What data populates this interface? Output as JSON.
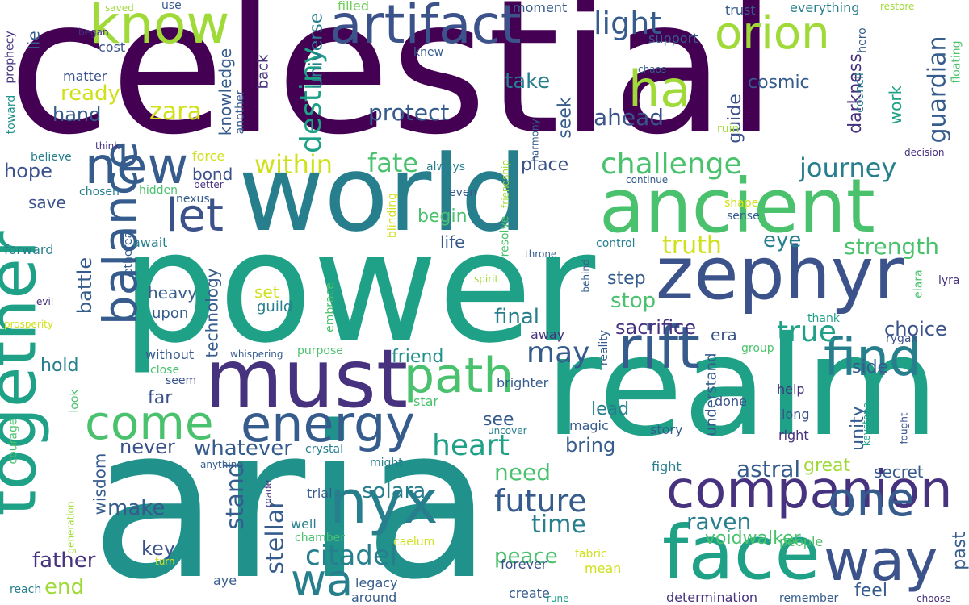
{
  "words": {
    "celestial": "celestial",
    "aria": "aria",
    "power": "power",
    "realm": "realm",
    "world": "world",
    "must": "must",
    "ancient": "ancient",
    "zephyr": "zephyr",
    "companion": "companion",
    "face": "face",
    "together": "together",
    "nyx": "nyx",
    "energy": "energy",
    "artifact": "artifact",
    "know": "know",
    "orion": "orion",
    "rift": "rift",
    "way": "way",
    "find": "find",
    "path": "path",
    "come": "come",
    "balance": "balance",
    "ha": "ha",
    "new": "new",
    "one": "one",
    "let": "let",
    "wa": "wa",
    "heart": "heart",
    "citadel": "citadel",
    "future": "future",
    "challenge": "challenge",
    "journey": "journey",
    "truth": "truth",
    "true": "true",
    "strength": "strength",
    "destiny": "destiny",
    "light": "light",
    "within": "within",
    "fate": "fate",
    "guardian": "guardian",
    "sacrifice": "sacrifice",
    "choice": "choice",
    "astral": "astral",
    "stellar": "stellar",
    "stand": "stand",
    "whatever": "whatever",
    "solara": "solara",
    "make": "make",
    "father": "father",
    "raven": "raven",
    "voidwalker": "voidwalker",
    "peace": "peace",
    "time": "time",
    "bring": "bring",
    "need": "need",
    "final": "final",
    "may": "may",
    "zara": "zara",
    "ready": "ready",
    "protect": "protect",
    "take": "take",
    "ahead": "ahead",
    "cosmic": "cosmic",
    "universe": "universe",
    "knowledge": "knowledge",
    "hope": "hope",
    "hand": "hand",
    "seek": "seek",
    "guide": "guide",
    "darkness": "darkness",
    "work": "work",
    "battle": "battle",
    "technology": "technology",
    "stop": "stop",
    "eye": "eye",
    "great": "great",
    "end": "end",
    "key": "key",
    "never": "never",
    "see": "see",
    "lead": "lead",
    "unity": "unity",
    "secret": "secret",
    "past": "past",
    "understand": "understand",
    "side": "side",
    "save": "save",
    "bond": "bond",
    "begin": "begin",
    "life": "life",
    "place": "place",
    "wisdom": "wisdom",
    "far": "far",
    "hold": "hold",
    "friend": "friend",
    "step": "step",
    "era": "era",
    "set": "set",
    "heavy": "heavy",
    "upon": "upon",
    "guild": "guild",
    "feel": "feel",
    "lie": "lie",
    "back": "back",
    "matter": "matter",
    "cost": "cost",
    "prophecy": "prophecy",
    "toward": "toward",
    "believe": "believe",
    "chosen": "chosen",
    "forward": "forward",
    "evil": "evil",
    "prosperity": "prosperity",
    "courage": "courage",
    "force": "force",
    "hidden": "hidden",
    "nexus": "nexus",
    "await": "await",
    "ethereal": "ethereal",
    "without": "without",
    "close": "close",
    "seem": "seem",
    "look": "look",
    "embrace": "embrace",
    "purpose": "purpose",
    "whispering": "whispering",
    "crystal": "crystal",
    "might": "might",
    "trial": "trial",
    "made": "made",
    "well": "well",
    "chamber": "chamber",
    "caelum": "caelum",
    "legacy": "legacy",
    "around": "around",
    "aye": "aye",
    "forever": "forever",
    "create": "create",
    "mean": "mean",
    "fabric": "fabric",
    "magic": "magic",
    "story": "story",
    "brighter": "brighter",
    "star": "star",
    "uncover": "uncover",
    "done": "done",
    "help": "help",
    "long": "long",
    "right": "right",
    "fight": "fight",
    "people": "people",
    "remember": "remember",
    "determination": "determination",
    "rune": "rune",
    "choose": "choose",
    "reach": "reach",
    "generation": "generation",
    "turn": "turn",
    "anything": "anything",
    "saved": "saved",
    "use": "use",
    "began": "began",
    "filled": "filled",
    "moment": "moment",
    "knew": "knew",
    "support": "support",
    "trust": "trust",
    "everything": "everything",
    "restore": "restore",
    "hero": "hero",
    "council": "council",
    "chaos": "chaos",
    "harmony": "harmony",
    "ruin": "ruin",
    "floating": "floating",
    "decision": "decision",
    "think": "think",
    "always": "always",
    "even": "even",
    "another": "another",
    "friendship": "friendship",
    "continue": "continue",
    "better": "better",
    "resolve": "resolve",
    "blinding": "blinding",
    "control": "control",
    "throne": "throne",
    "shape": "shape",
    "sense": "sense",
    "behind": "behind",
    "spirit": "spirit",
    "reality": "reality",
    "away": "away",
    "thank": "thank",
    "group": "group",
    "rygax": "rygax",
    "elara": "elara",
    "lyra": "lyra",
    "keystone": "keystone",
    "fought": "fought"
  },
  "colors": {
    "deep_purple": "#440154",
    "purple": "#46327e",
    "indigo": "#3b528b",
    "blue": "#365c8d",
    "teal_blue": "#277f8e",
    "teal": "#21918c",
    "sea_green": "#1fa187",
    "green": "#4ac16d",
    "light_green": "#6ece58",
    "lime": "#a0da39",
    "yellow": "#d0e11c",
    "bright_yellow": "#fde725"
  }
}
